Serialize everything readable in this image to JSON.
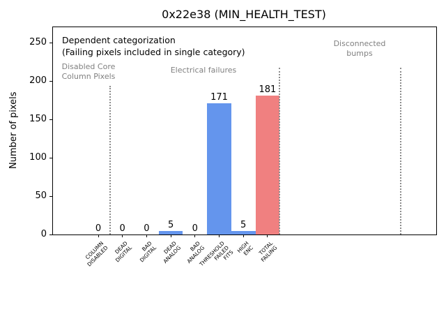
{
  "chart_data": {
    "type": "bar",
    "title": "0x22e38 (MIN_HEALTH_TEST)",
    "xlabel": "",
    "ylabel": "Number of pixels",
    "categories": [
      "COLUMN\nDISABLED",
      "DEAD\nDIGITAL",
      "BAD\nDIGITAL",
      "DEAD\nANALOG",
      "BAD\nANALOG",
      "THRESHOLD\nFAILED\nFITS",
      "HIGH\nENC",
      "TOTAL\nFAILING"
    ],
    "values": [
      0,
      0,
      0,
      5,
      0,
      171,
      5,
      181
    ],
    "bar_colors": [
      "#6495ED",
      "#6495ED",
      "#6495ED",
      "#6495ED",
      "#6495ED",
      "#6495ED",
      "#6495ED",
      "#F08080"
    ],
    "yticks": [
      0,
      50,
      100,
      150,
      200,
      250
    ],
    "ylim": [
      0,
      270
    ],
    "grid": false,
    "legend": null,
    "annotations": {
      "title_note": "Dependent categorization",
      "subtitle_note": "(Failing pixels included in single category)",
      "zones": [
        {
          "label": "Disabled Core\nColumn Pixels",
          "separator_after_cat": 0.5
        },
        {
          "label": "Electrical failures",
          "separator_after_cat": 7.5
        },
        {
          "label": "Disconnected\nbumps",
          "separator_after_cat": 12.5
        }
      ]
    },
    "colors": {
      "bar_default": "#6495ED",
      "bar_total": "#F08080",
      "zone_text": "#808080",
      "separator": "#8c8c8c",
      "axis": "#000000"
    }
  }
}
